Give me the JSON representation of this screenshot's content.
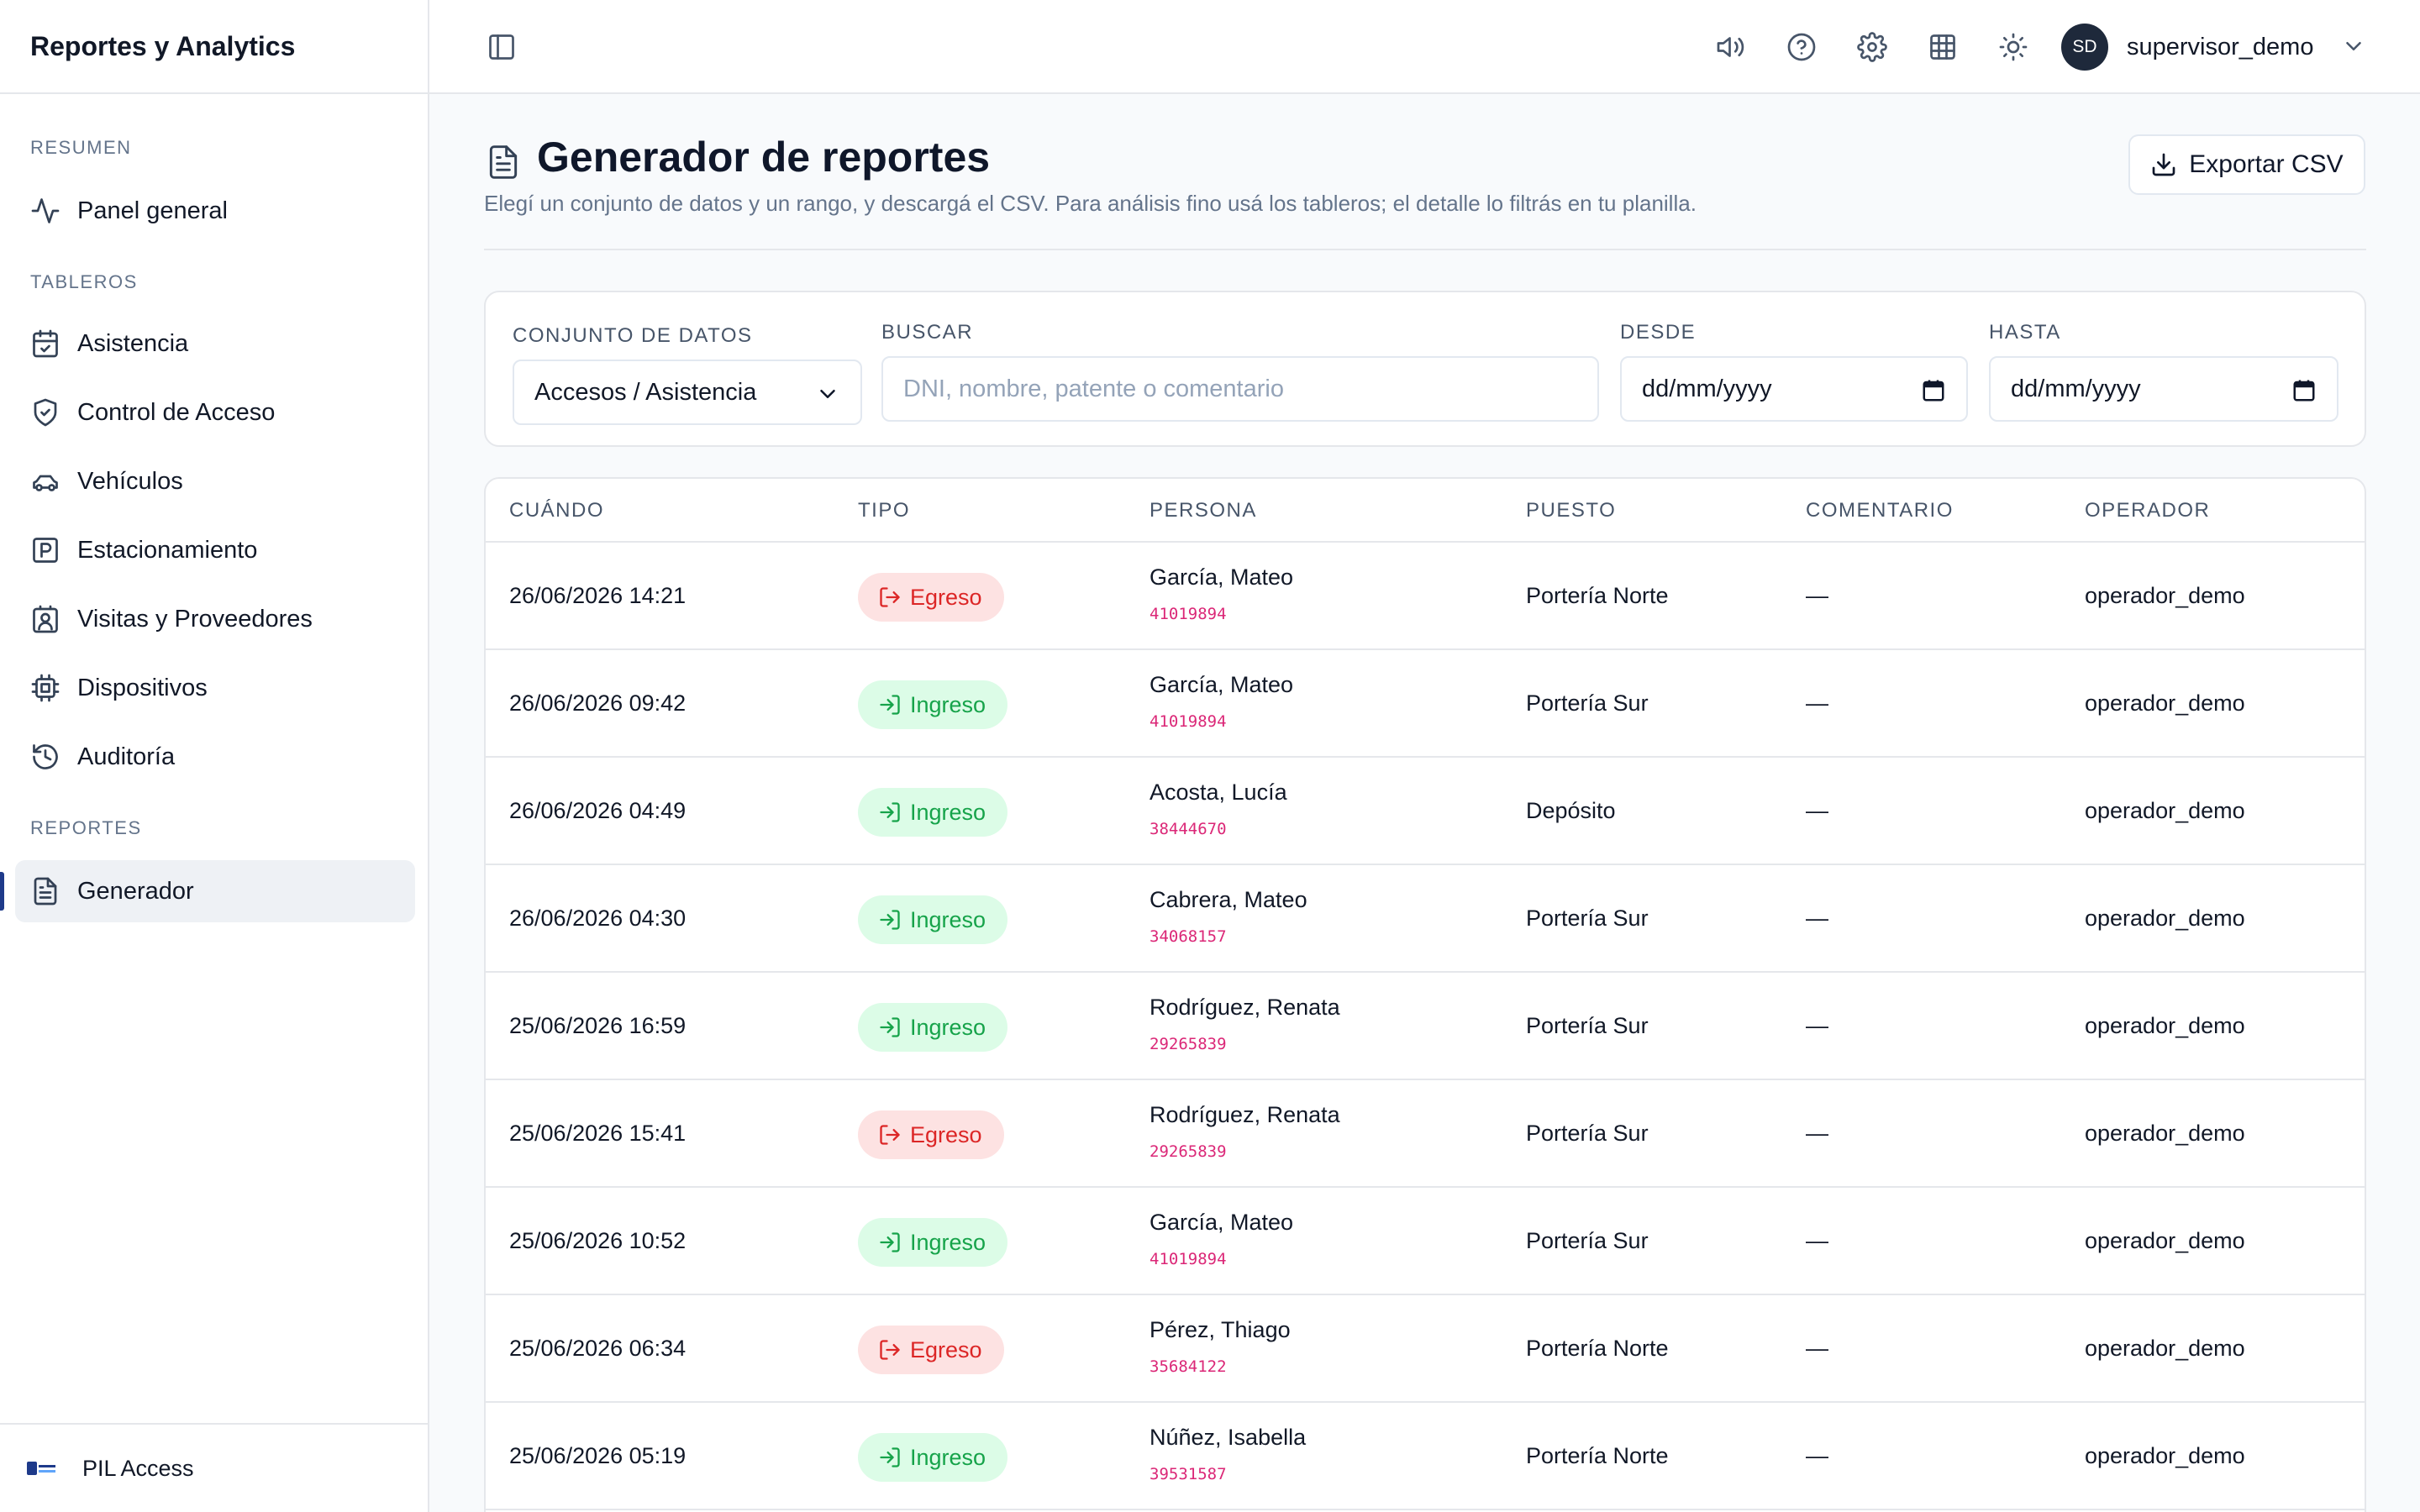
{
  "sidebar": {
    "title": "Reportes y Analytics",
    "sections": {
      "resumen": "RESUMEN",
      "tableros": "TABLEROS",
      "reportes": "REPORTES"
    },
    "items": [
      {
        "label": "Panel general",
        "icon": "activity-icon"
      },
      {
        "label": "Asistencia",
        "icon": "calendar-check-icon"
      },
      {
        "label": "Control de Acceso",
        "icon": "shield-check-icon"
      },
      {
        "label": "Vehículos",
        "icon": "car-icon"
      },
      {
        "label": "Estacionamiento",
        "icon": "parking-icon"
      },
      {
        "label": "Visitas y Proveedores",
        "icon": "contact-icon"
      },
      {
        "label": "Dispositivos",
        "icon": "cpu-icon"
      },
      {
        "label": "Auditoría",
        "icon": "history-icon"
      },
      {
        "label": "Generador",
        "icon": "file-text-icon",
        "active": true
      }
    ],
    "footer": "PIL Access"
  },
  "topbar": {
    "user_initials": "SD",
    "user_name": "supervisor_demo"
  },
  "page": {
    "title": "Generador de reportes",
    "subtitle": "Elegí un conjunto de datos y un rango, y descargá el CSV. Para análisis fino usá los tableros; el detalle lo filtrás en tu planilla.",
    "export_label": "Exportar CSV"
  },
  "filters": {
    "dataset_label": "CONJUNTO DE DATOS",
    "dataset_value": "Accesos / Asistencia",
    "search_label": "BUSCAR",
    "search_placeholder": "DNI, nombre, patente o comentario",
    "from_label": "DESDE",
    "from_value": "dd/mm/yyyy",
    "to_label": "HASTA",
    "to_value": "dd/mm/yyyy"
  },
  "table": {
    "headers": [
      "CUÁNDO",
      "TIPO",
      "PERSONA",
      "PUESTO",
      "COMENTARIO",
      "OPERADOR"
    ],
    "rows": [
      {
        "when": "26/06/2026 14:21",
        "type": "Egreso",
        "name": "García, Mateo",
        "dni": "41019894",
        "post": "Portería Norte",
        "comment": "—",
        "operator": "operador_demo"
      },
      {
        "when": "26/06/2026 09:42",
        "type": "Ingreso",
        "name": "García, Mateo",
        "dni": "41019894",
        "post": "Portería Sur",
        "comment": "—",
        "operator": "operador_demo"
      },
      {
        "when": "26/06/2026 04:49",
        "type": "Ingreso",
        "name": "Acosta, Lucía",
        "dni": "38444670",
        "post": "Depósito",
        "comment": "—",
        "operator": "operador_demo"
      },
      {
        "when": "26/06/2026 04:30",
        "type": "Ingreso",
        "name": "Cabrera, Mateo",
        "dni": "34068157",
        "post": "Portería Sur",
        "comment": "—",
        "operator": "operador_demo"
      },
      {
        "when": "25/06/2026 16:59",
        "type": "Ingreso",
        "name": "Rodríguez, Renata",
        "dni": "29265839",
        "post": "Portería Sur",
        "comment": "—",
        "operator": "operador_demo"
      },
      {
        "when": "25/06/2026 15:41",
        "type": "Egreso",
        "name": "Rodríguez, Renata",
        "dni": "29265839",
        "post": "Portería Sur",
        "comment": "—",
        "operator": "operador_demo"
      },
      {
        "when": "25/06/2026 10:52",
        "type": "Ingreso",
        "name": "García, Mateo",
        "dni": "41019894",
        "post": "Portería Sur",
        "comment": "—",
        "operator": "operador_demo"
      },
      {
        "when": "25/06/2026 06:34",
        "type": "Egreso",
        "name": "Pérez, Thiago",
        "dni": "35684122",
        "post": "Portería Norte",
        "comment": "—",
        "operator": "operador_demo"
      },
      {
        "when": "25/06/2026 05:19",
        "type": "Ingreso",
        "name": "Núñez, Isabella",
        "dni": "39531587",
        "post": "Portería Norte",
        "comment": "—",
        "operator": "operador_demo"
      }
    ]
  },
  "colors": {
    "accent": "#1e3a8a",
    "egreso_bg": "#fde2e2",
    "egreso_fg": "#dc2626",
    "ingreso_bg": "#dcfce7",
    "ingreso_fg": "#16a34a",
    "dni": "#db2777"
  }
}
